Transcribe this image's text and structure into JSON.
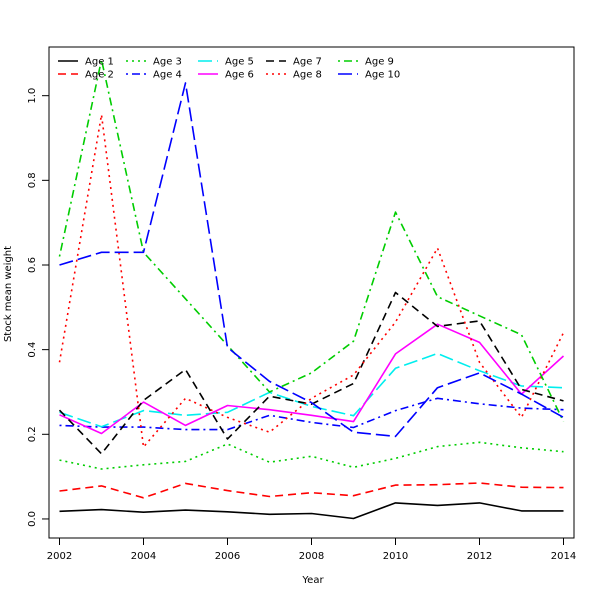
{
  "chart_data": {
    "type": "line",
    "title": "",
    "xlabel": "Year",
    "ylabel": "Stock mean weight",
    "x": [
      2002,
      2003,
      2004,
      2005,
      2006,
      2007,
      2008,
      2009,
      2010,
      2011,
      2012,
      2013,
      2014
    ],
    "xlim": [
      2001.75,
      2014.25
    ],
    "ylim": [
      -0.045,
      1.115
    ],
    "x_ticks": [
      2002,
      2004,
      2006,
      2008,
      2010,
      2012,
      2014
    ],
    "y_ticks": [
      0.0,
      0.2,
      0.4,
      0.6,
      0.8,
      1.0
    ],
    "y_tick_labels": [
      "0.0",
      "0.2",
      "0.4",
      "0.6",
      "0.8",
      "1.0"
    ],
    "legend_position": "top-left",
    "grid": false,
    "series": [
      {
        "name": "Age 1",
        "color": "#000000",
        "dash": "solid",
        "values": [
          0.018,
          0.022,
          0.016,
          0.021,
          0.017,
          0.011,
          0.013,
          0.001,
          0.038,
          0.032,
          0.038,
          0.019,
          0.019
        ]
      },
      {
        "name": "Age 2",
        "color": "#ff0000",
        "dash": "dashed",
        "values": [
          0.066,
          0.078,
          0.05,
          0.084,
          0.067,
          0.053,
          0.062,
          0.055,
          0.08,
          0.081,
          0.085,
          0.075,
          0.074
        ]
      },
      {
        "name": "Age 3",
        "color": "#00cd00",
        "dash": "dotted",
        "values": [
          0.139,
          0.118,
          0.128,
          0.136,
          0.177,
          0.134,
          0.148,
          0.122,
          0.143,
          0.171,
          0.181,
          0.168,
          0.159
        ]
      },
      {
        "name": "Age 4",
        "color": "#0000ff",
        "dash": "dotdash",
        "values": [
          0.221,
          0.217,
          0.217,
          0.211,
          0.211,
          0.245,
          0.228,
          0.216,
          0.256,
          0.285,
          0.272,
          0.262,
          0.258
        ]
      },
      {
        "name": "Age 5",
        "color": "#00eeee",
        "dash": "longdash",
        "values": [
          0.252,
          0.218,
          0.256,
          0.245,
          0.252,
          0.299,
          0.266,
          0.244,
          0.356,
          0.391,
          0.35,
          0.314,
          0.31
        ]
      },
      {
        "name": "Age 6",
        "color": "#ff00ff",
        "dash": "solid",
        "values": [
          0.246,
          0.202,
          0.276,
          0.221,
          0.268,
          0.258,
          0.245,
          0.23,
          0.39,
          0.46,
          0.417,
          0.295,
          0.385
        ]
      },
      {
        "name": "Age 7",
        "color": "#000000",
        "dash": "dashed",
        "values": [
          0.257,
          0.154,
          0.28,
          0.353,
          0.189,
          0.29,
          0.271,
          0.32,
          0.535,
          0.455,
          0.468,
          0.306,
          0.279
        ]
      },
      {
        "name": "Age 8",
        "color": "#ff0000",
        "dash": "dotted",
        "values": [
          0.37,
          0.955,
          0.17,
          0.285,
          0.24,
          0.205,
          0.285,
          0.34,
          0.465,
          0.64,
          0.37,
          0.24,
          0.44
        ]
      },
      {
        "name": "Age 9",
        "color": "#00cd00",
        "dash": "dotdash",
        "values": [
          0.62,
          1.085,
          0.63,
          0.52,
          0.41,
          0.3,
          0.345,
          0.42,
          0.725,
          0.525,
          0.48,
          0.435,
          0.23
        ]
      },
      {
        "name": "Age 10",
        "color": "#0000ff",
        "dash": "longdash",
        "values": [
          0.6,
          0.63,
          0.63,
          1.03,
          0.405,
          0.325,
          0.275,
          0.205,
          0.195,
          0.31,
          0.345,
          0.295,
          0.24
        ]
      }
    ]
  }
}
